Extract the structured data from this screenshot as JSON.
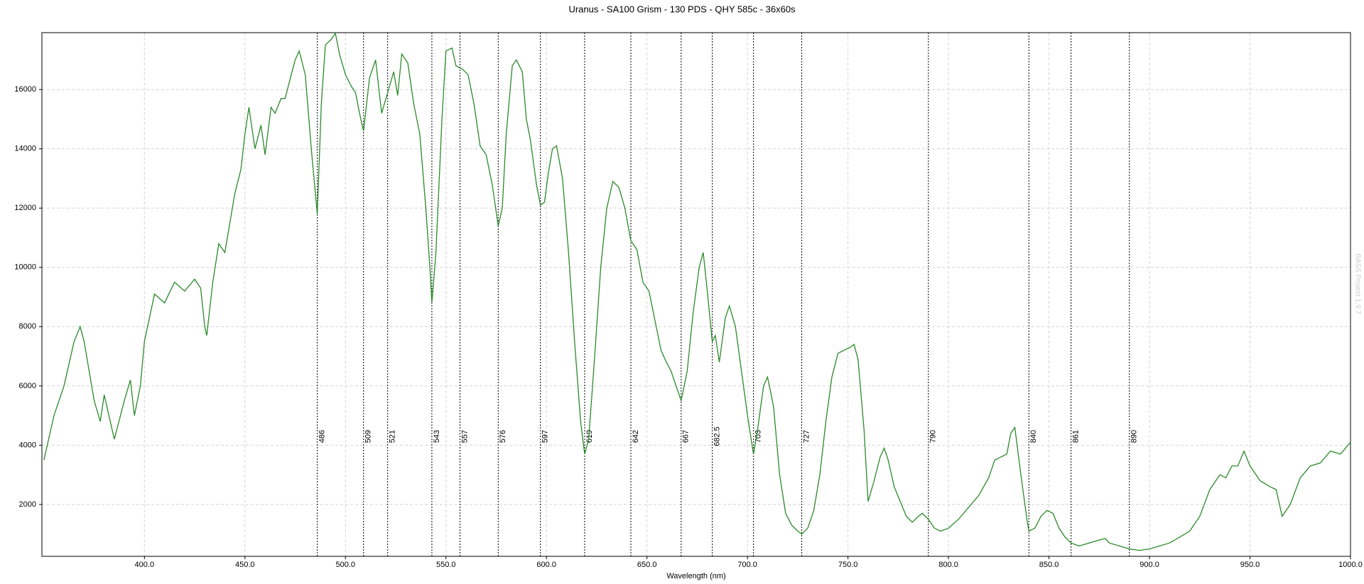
{
  "chart_data": {
    "type": "line",
    "title": "Uranus - SA100 Grism - 130 PDS - QHY 585c - 36x60s",
    "x_label": "Wavelength (nm)",
    "watermark": "BASS Project 1.9.7",
    "color": "#2a8a2a",
    "grid": true,
    "xlim": [
      349,
      1000
    ],
    "ylim": [
      250,
      17920
    ],
    "xticks": [
      {
        "value": 400,
        "label": "400.0"
      },
      {
        "value": 450,
        "label": "450.0"
      },
      {
        "value": 500,
        "label": "500.0"
      },
      {
        "value": 550,
        "label": "550.0"
      },
      {
        "value": 600,
        "label": "600.0"
      },
      {
        "value": 650,
        "label": "650.0"
      },
      {
        "value": 700,
        "label": "700.0"
      },
      {
        "value": 750,
        "label": "750.0"
      },
      {
        "value": 800,
        "label": "800.0"
      },
      {
        "value": 850,
        "label": "850.0"
      },
      {
        "value": 900,
        "label": "900.0"
      },
      {
        "value": 950,
        "label": "950.0"
      },
      {
        "value": 1000,
        "label": "1000.0"
      }
    ],
    "yticks": [
      2000,
      4000,
      6000,
      8000,
      10000,
      12000,
      14000,
      16000
    ],
    "markers": [
      486,
      509,
      521,
      543,
      557,
      576,
      597,
      619,
      642,
      667,
      682.5,
      703,
      727,
      790,
      840,
      861,
      890
    ],
    "x": [
      350,
      355,
      360,
      365,
      368,
      370,
      375,
      378,
      380,
      385,
      390,
      393,
      395,
      398,
      400,
      405,
      410,
      415,
      420,
      425,
      428,
      430,
      431,
      434,
      437,
      440,
      445,
      448,
      450,
      452,
      455,
      458,
      460,
      463,
      465,
      468,
      470,
      473,
      475,
      477,
      480,
      483,
      486,
      488,
      490,
      493,
      495,
      497,
      500,
      503,
      505,
      507,
      509,
      512,
      515,
      518,
      521,
      524,
      526,
      528,
      531,
      534,
      537,
      540,
      542,
      543,
      545,
      548,
      550,
      553,
      555,
      558,
      561,
      564,
      567,
      570,
      573,
      576,
      578,
      580,
      583,
      585,
      588,
      590,
      592,
      595,
      597,
      599,
      601,
      603,
      605,
      608,
      611,
      614,
      617,
      619,
      621,
      624,
      627,
      630,
      633,
      636,
      639,
      642,
      645,
      648,
      651,
      654,
      657,
      659,
      662,
      665,
      667,
      670,
      673,
      676,
      678,
      680,
      682.5,
      684,
      686,
      689,
      691,
      694,
      697,
      700,
      703,
      705,
      708,
      710,
      713,
      716,
      719,
      722,
      725,
      727,
      730,
      733,
      736,
      739,
      742,
      745,
      748,
      751,
      753,
      755,
      758,
      760,
      763,
      766,
      768,
      770,
      773,
      776,
      779,
      782,
      785,
      787,
      790,
      793,
      796,
      800,
      805,
      810,
      815,
      820,
      823,
      826,
      829,
      831,
      833,
      836,
      839,
      840,
      843,
      846,
      849,
      852,
      855,
      858,
      861,
      865,
      870,
      875,
      878,
      880,
      885,
      890,
      895,
      900,
      905,
      910,
      915,
      920,
      925,
      930,
      935,
      938,
      941,
      944,
      947,
      950,
      955,
      960,
      963,
      966,
      970,
      975,
      980,
      985,
      990,
      995,
      1000
    ],
    "values": [
      3500,
      5000,
      6000,
      7500,
      8000,
      7500,
      5500,
      4800,
      5700,
      4200,
      5500,
      6200,
      5000,
      6000,
      7500,
      9100,
      8800,
      9500,
      9200,
      9600,
      9300,
      8000,
      7700,
      9500,
      10800,
      10500,
      12500,
      13300,
      14500,
      15400,
      14000,
      14800,
      13800,
      15400,
      15200,
      15700,
      15700,
      16500,
      17000,
      17300,
      16500,
      14000,
      11800,
      15500,
      17500,
      17700,
      17900,
      17200,
      16500,
      16100,
      15900,
      15200,
      14600,
      16400,
      17000,
      15200,
      15900,
      16600,
      15800,
      17200,
      16900,
      15500,
      14500,
      12000,
      10000,
      8800,
      10500,
      15000,
      17300,
      17400,
      16800,
      16700,
      16500,
      15500,
      14100,
      13800,
      12800,
      11400,
      12000,
      14500,
      16800,
      17000,
      16600,
      15000,
      14300,
      12800,
      12100,
      12200,
      13200,
      14000,
      14100,
      13000,
      10500,
      7500,
      4800,
      3700,
      4200,
      7000,
      10000,
      12000,
      12900,
      12700,
      12000,
      10900,
      10600,
      9500,
      9200,
      8200,
      7200,
      6900,
      6500,
      5900,
      5500,
      6500,
      8500,
      10000,
      10500,
      9200,
      7500,
      7700,
      6800,
      8300,
      8700,
      8000,
      6500,
      5000,
      3700,
      4500,
      6000,
      6300,
      5300,
      3000,
      1700,
      1300,
      1100,
      1000,
      1200,
      1800,
      3000,
      4800,
      6300,
      7100,
      7200,
      7300,
      7400,
      6900,
      4500,
      2100,
      2800,
      3600,
      3900,
      3500,
      2600,
      2100,
      1600,
      1400,
      1600,
      1700,
      1500,
      1200,
      1100,
      1200,
      1500,
      1900,
      2300,
      2900,
      3500,
      3600,
      3700,
      4400,
      4600,
      3000,
      1500,
      1100,
      1200,
      1600,
      1800,
      1700,
      1200,
      900,
      700,
      600,
      700,
      800,
      850,
      700,
      600,
      500,
      450,
      500,
      600,
      700,
      900,
      1100,
      1600,
      2500,
      3000,
      2900,
      3300,
      3300,
      3800,
      3300,
      2800,
      2600,
      2500,
      1600,
      2000,
      2900,
      3300,
      3400,
      3800,
      3700,
      4100
    ]
  }
}
